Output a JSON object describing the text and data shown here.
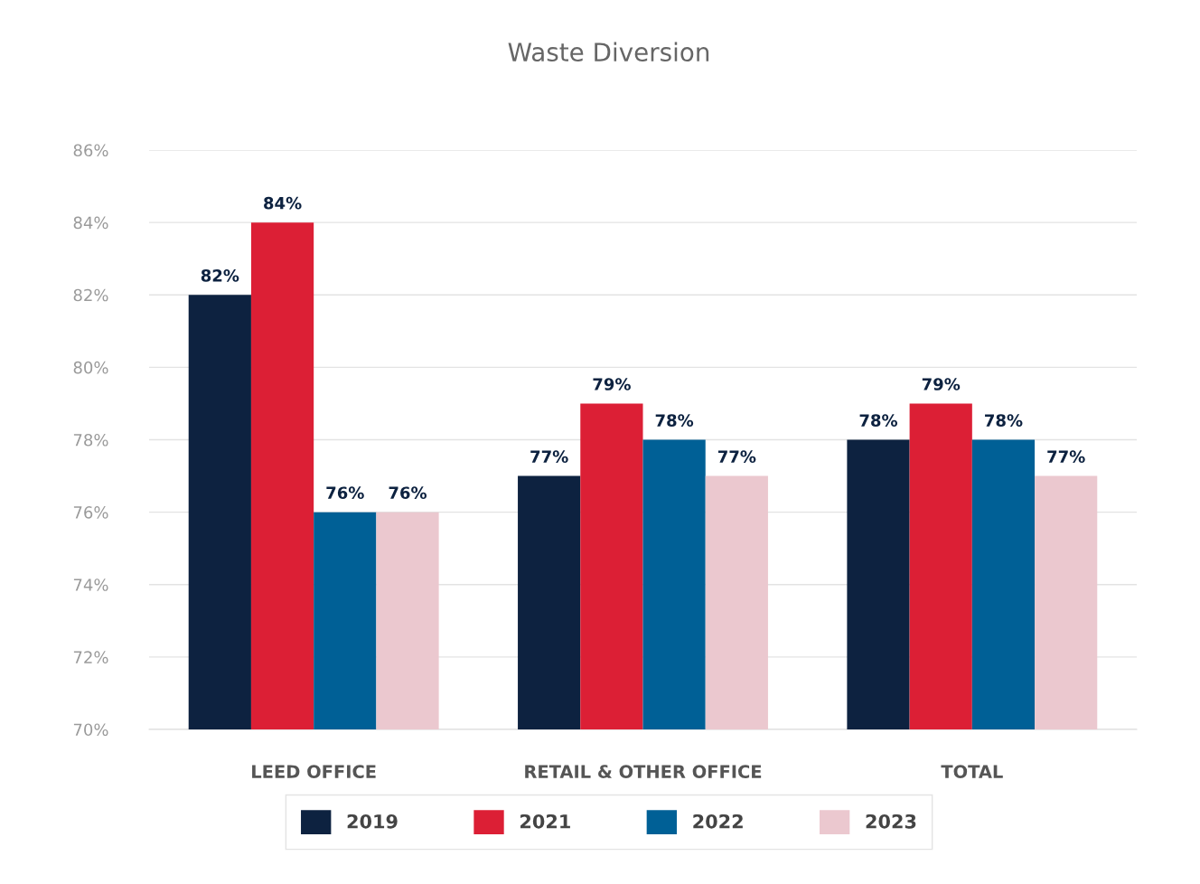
{
  "chart_data": {
    "type": "bar",
    "title": "Waste Diversion",
    "categories": [
      "LEED OFFICE",
      "RETAIL & OTHER OFFICE",
      "TOTAL"
    ],
    "series": [
      {
        "name": "2019",
        "color": "#0d2240",
        "values": [
          82,
          77,
          78
        ],
        "value_labels": [
          "82%",
          "77%",
          "78%"
        ]
      },
      {
        "name": "2021",
        "color": "#dc1f35",
        "values": [
          84,
          79,
          79
        ],
        "value_labels": [
          "84%",
          "79%",
          "79%"
        ]
      },
      {
        "name": "2022",
        "color": "#006096",
        "values": [
          76,
          78,
          78
        ],
        "value_labels": [
          "76%",
          "78%",
          "78%"
        ]
      },
      {
        "name": "2023",
        "color": "#ebc8cf",
        "values": [
          76,
          77,
          77
        ],
        "value_labels": [
          "76%",
          "77%",
          "77%"
        ]
      }
    ],
    "ylim": [
      70,
      86
    ],
    "yticks": [
      {
        "value": 70,
        "label": "70%"
      },
      {
        "value": 72,
        "label": "72%"
      },
      {
        "value": 74,
        "label": "74%"
      },
      {
        "value": 76,
        "label": "76%"
      },
      {
        "value": 78,
        "label": "78%"
      },
      {
        "value": 80,
        "label": "80%"
      },
      {
        "value": 82,
        "label": "82%"
      },
      {
        "value": 84,
        "label": "84%"
      },
      {
        "value": 86,
        "label": "86%"
      }
    ],
    "grid": "y",
    "legend": "bottom"
  }
}
